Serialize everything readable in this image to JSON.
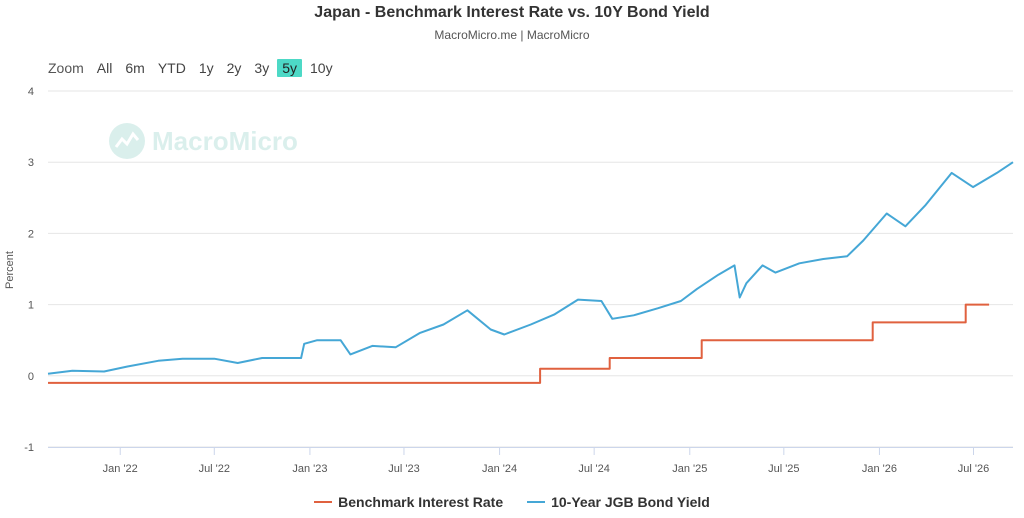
{
  "title": "Japan - Benchmark Interest Rate vs. 10Y Bond Yield",
  "subtitle": "MacroMicro.me | MacroMicro",
  "range_selector": {
    "zoom_label": "Zoom",
    "buttons": [
      "All",
      "6m",
      "YTD",
      "1y",
      "2y",
      "3y",
      "5y",
      "10y"
    ],
    "active": "5y"
  },
  "watermark": "MacroMicro",
  "colors": {
    "rate": "#e0613f",
    "yield": "#45a7d6",
    "grid": "#e6e6e6",
    "active_button": "#4dd9c6"
  },
  "chart_data": {
    "type": "line",
    "title": "Japan - Benchmark Interest Rate vs. 10Y Bond Yield",
    "xlabel": "",
    "ylabel": "Percent",
    "ylim": [
      -1,
      4
    ],
    "yticks": [
      -1,
      0,
      1,
      2,
      3,
      4
    ],
    "xlim": [
      "2021-08-15",
      "2026-09-15"
    ],
    "xticks": [
      {
        "date": "2022-01-01",
        "label": "Jan '22"
      },
      {
        "date": "2022-07-01",
        "label": "Jul '22"
      },
      {
        "date": "2023-01-01",
        "label": "Jan '23"
      },
      {
        "date": "2023-07-01",
        "label": "Jul '23"
      },
      {
        "date": "2024-01-01",
        "label": "Jan '24"
      },
      {
        "date": "2024-07-01",
        "label": "Jul '24"
      },
      {
        "date": "2025-01-01",
        "label": "Jan '25"
      },
      {
        "date": "2025-07-01",
        "label": "Jul '25"
      },
      {
        "date": "2026-01-01",
        "label": "Jan '26"
      },
      {
        "date": "2026-07-01",
        "label": "Jul '26"
      }
    ],
    "grid": true,
    "legend_position": "bottom-center",
    "series": [
      {
        "name": "Benchmark Interest Rate",
        "color": "#e0613f",
        "step": true,
        "points": [
          [
            "2021-08-15",
            -0.1
          ],
          [
            "2024-03-19",
            0.1
          ],
          [
            "2024-07-31",
            0.25
          ],
          [
            "2025-01-24",
            0.5
          ],
          [
            "2025-12-19",
            0.75
          ],
          [
            "2026-06-16",
            1.0
          ],
          [
            "2026-07-31",
            1.0
          ]
        ]
      },
      {
        "name": "10-Year JGB Bond Yield",
        "color": "#45a7d6",
        "step": false,
        "points": [
          [
            "2021-08-15",
            0.03
          ],
          [
            "2021-10-01",
            0.07
          ],
          [
            "2021-12-01",
            0.06
          ],
          [
            "2022-01-15",
            0.13
          ],
          [
            "2022-03-15",
            0.21
          ],
          [
            "2022-05-01",
            0.24
          ],
          [
            "2022-07-01",
            0.24
          ],
          [
            "2022-08-15",
            0.18
          ],
          [
            "2022-10-01",
            0.25
          ],
          [
            "2022-12-15",
            0.25
          ],
          [
            "2022-12-21",
            0.45
          ],
          [
            "2023-01-15",
            0.5
          ],
          [
            "2023-03-01",
            0.5
          ],
          [
            "2023-03-20",
            0.3
          ],
          [
            "2023-05-01",
            0.42
          ],
          [
            "2023-06-15",
            0.4
          ],
          [
            "2023-07-31",
            0.6
          ],
          [
            "2023-09-15",
            0.72
          ],
          [
            "2023-10-31",
            0.92
          ],
          [
            "2023-12-15",
            0.65
          ],
          [
            "2024-01-10",
            0.58
          ],
          [
            "2024-03-01",
            0.72
          ],
          [
            "2024-04-15",
            0.86
          ],
          [
            "2024-05-31",
            1.07
          ],
          [
            "2024-07-15",
            1.05
          ],
          [
            "2024-08-05",
            0.8
          ],
          [
            "2024-09-15",
            0.85
          ],
          [
            "2024-11-01",
            0.95
          ],
          [
            "2024-12-15",
            1.05
          ],
          [
            "2025-01-15",
            1.22
          ],
          [
            "2025-02-25",
            1.42
          ],
          [
            "2025-03-28",
            1.55
          ],
          [
            "2025-04-07",
            1.1
          ],
          [
            "2025-04-20",
            1.3
          ],
          [
            "2025-05-21",
            1.55
          ],
          [
            "2025-06-15",
            1.45
          ],
          [
            "2025-07-31",
            1.58
          ],
          [
            "2025-09-15",
            1.64
          ],
          [
            "2025-10-31",
            1.68
          ],
          [
            "2025-12-01",
            1.9
          ],
          [
            "2026-01-15",
            2.28
          ],
          [
            "2026-02-20",
            2.1
          ],
          [
            "2026-03-31",
            2.4
          ],
          [
            "2026-05-20",
            2.85
          ],
          [
            "2026-06-30",
            2.65
          ],
          [
            "2026-08-15",
            2.85
          ],
          [
            "2026-09-15",
            3.0
          ]
        ]
      }
    ]
  }
}
